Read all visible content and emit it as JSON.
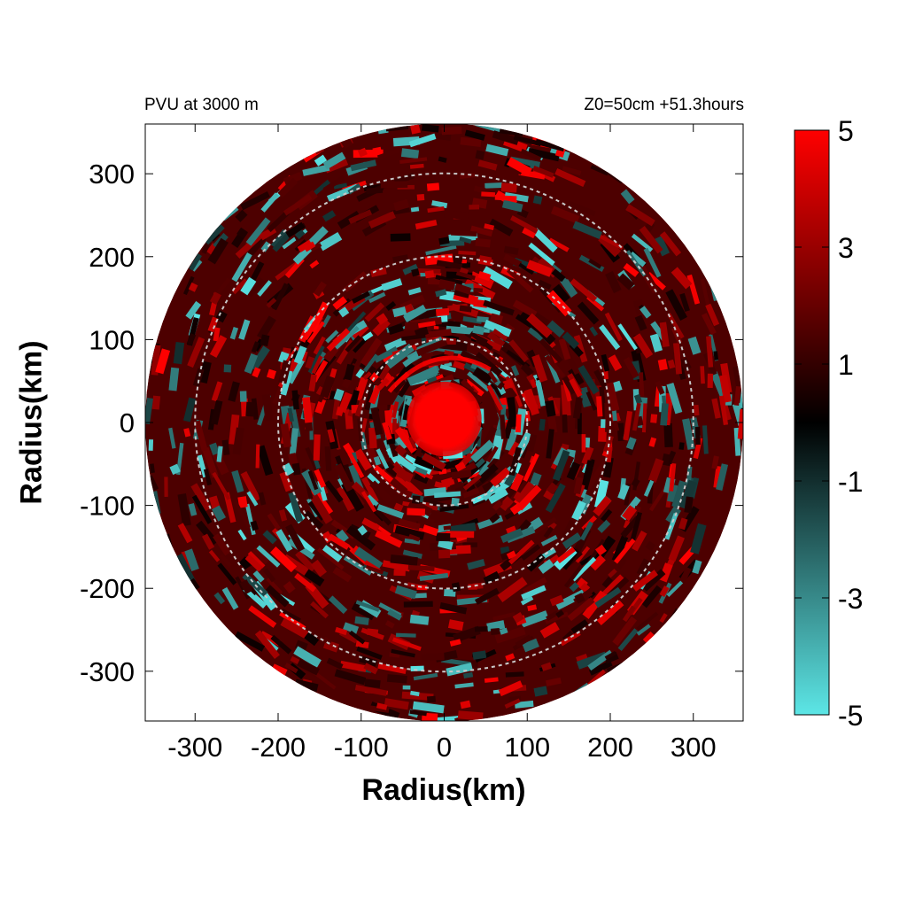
{
  "chart_data": {
    "type": "heatmap",
    "title_left": "PVU at  3000 m",
    "title_right": "Z0=50cm  +51.3hours",
    "xlabel": "Radius(km)",
    "ylabel": "Radius(km)",
    "xlim": [
      -360,
      360
    ],
    "ylim": [
      -360,
      360
    ],
    "x_ticks": [
      -300,
      -200,
      -100,
      0,
      100,
      200,
      300
    ],
    "y_ticks": [
      300,
      200,
      100,
      0,
      -100,
      -200,
      -300
    ],
    "x_tick_labels": [
      "-300",
      "-200",
      "-100",
      "0",
      "100",
      "200",
      "300"
    ],
    "y_tick_labels": [
      "300",
      "200",
      "100",
      "0",
      "-100",
      "-200",
      "-300"
    ],
    "domain_radius_km": 360,
    "range_rings_km": [
      100,
      200,
      300
    ],
    "colorbar": {
      "min": -5,
      "max": 5,
      "tick_values": [
        5,
        3,
        1,
        -1,
        -3,
        -5
      ],
      "tick_labels": [
        "5",
        "3",
        "1",
        "-1",
        "-3",
        "-5"
      ],
      "colors": {
        "min": "#5ce6e6",
        "mid": "#000000",
        "max": "#ff0000"
      }
    },
    "description_features": {
      "core_value_max": 5,
      "core_radius_km": 45,
      "background_value": 1.5
    }
  }
}
